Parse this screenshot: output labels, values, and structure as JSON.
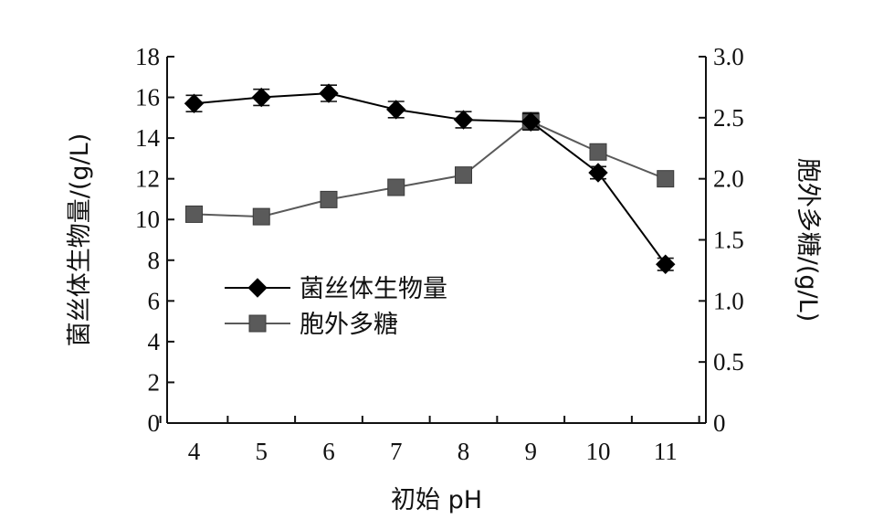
{
  "chart_data": {
    "type": "line",
    "xlabel": "初始 pH",
    "ylabel_left": "菌丝体生物量/(g/L)",
    "ylabel_right": "胞外多糖/(g/L)",
    "x": [
      4,
      5,
      6,
      7,
      8,
      9,
      10,
      11
    ],
    "x_tick_labels": [
      "4",
      "5",
      "6",
      "7",
      "8",
      "9",
      "10",
      "11"
    ],
    "ylim_left": [
      0,
      18
    ],
    "yticks_left": [
      0,
      2,
      4,
      6,
      8,
      10,
      12,
      14,
      16,
      18
    ],
    "ylim_right": [
      0,
      3.0
    ],
    "yticks_right": [
      "0",
      "0.5",
      "1.0",
      "1.5",
      "2.0",
      "2.5",
      "3.0"
    ],
    "grid": false,
    "legend_position": "center-left",
    "series": [
      {
        "name": "菌丝体生物量",
        "axis": "left",
        "marker": "diamond",
        "color": "#000000",
        "values": [
          15.7,
          16.0,
          16.2,
          15.4,
          14.9,
          14.8,
          12.3,
          7.8
        ],
        "errors": [
          0.4,
          0.4,
          0.4,
          0.4,
          0.4,
          0.4,
          0.3,
          0.3
        ]
      },
      {
        "name": "胞外多糖",
        "axis": "right",
        "marker": "square",
        "color": "#5a5a5a",
        "values": [
          1.71,
          1.69,
          1.83,
          1.93,
          2.03,
          2.47,
          2.22,
          2.0
        ],
        "errors": [
          0.04,
          0.04,
          0.04,
          0.05,
          0.05,
          0.07,
          0.06,
          0.04
        ]
      }
    ]
  }
}
